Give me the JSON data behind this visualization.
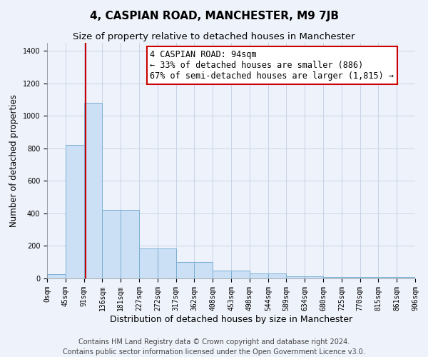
{
  "title": "4, CASPIAN ROAD, MANCHESTER, M9 7JB",
  "subtitle": "Size of property relative to detached houses in Manchester",
  "xlabel": "Distribution of detached houses by size in Manchester",
  "ylabel": "Number of detached properties",
  "annotation_title": "4 CASPIAN ROAD: 94sqm",
  "annotation_line2": "← 33% of detached houses are smaller (886)",
  "annotation_line3": "67% of semi-detached houses are larger (1,815) →",
  "footer_line1": "Contains HM Land Registry data © Crown copyright and database right 2024.",
  "footer_line2": "Contains public sector information licensed under the Open Government Licence v3.0.",
  "bar_edges": [
    0,
    45,
    91,
    136,
    181,
    227,
    272,
    317,
    362,
    408,
    453,
    498,
    544,
    589,
    634,
    680,
    725,
    770,
    815,
    861,
    906
  ],
  "bar_heights": [
    25,
    820,
    1080,
    420,
    420,
    185,
    185,
    100,
    100,
    50,
    50,
    30,
    30,
    15,
    15,
    10,
    10,
    10,
    10,
    10,
    0
  ],
  "red_line_x": 94,
  "ylim": [
    0,
    1450
  ],
  "yticks": [
    0,
    200,
    400,
    600,
    800,
    1000,
    1200,
    1400
  ],
  "xtick_labels": [
    "0sqm",
    "45sqm",
    "91sqm",
    "136sqm",
    "181sqm",
    "227sqm",
    "272sqm",
    "317sqm",
    "362sqm",
    "408sqm",
    "453sqm",
    "498sqm",
    "544sqm",
    "589sqm",
    "634sqm",
    "680sqm",
    "725sqm",
    "770sqm",
    "815sqm",
    "861sqm",
    "906sqm"
  ],
  "bar_color": "#cce0f5",
  "bar_edge_color": "#7aafd4",
  "red_line_color": "#cc0000",
  "annotation_box_color": "#ffffff",
  "annotation_box_edge": "#cc0000",
  "grid_color": "#c8d4e8",
  "bg_color": "#eef2fa",
  "title_fontsize": 11,
  "subtitle_fontsize": 9.5,
  "xlabel_fontsize": 9,
  "ylabel_fontsize": 8.5,
  "tick_fontsize": 7,
  "footer_fontsize": 7,
  "annotation_fontsize": 8.5
}
